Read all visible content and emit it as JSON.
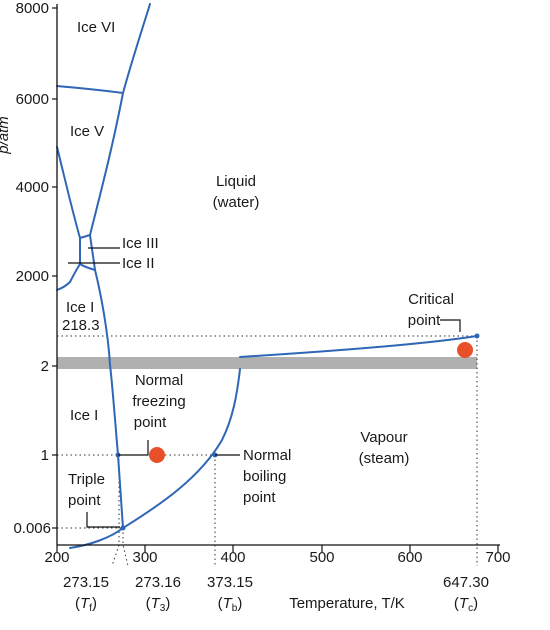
{
  "chart_data": {
    "type": "phase-diagram",
    "xlabel": "Temperature, T/K",
    "ylabel": "p/atm",
    "x_ticks": [
      "200",
      "300",
      "400",
      "500",
      "600",
      "700"
    ],
    "y_ticks_upper": [
      "2000",
      "4000",
      "6000",
      "8000"
    ],
    "y_ticks_lower": [
      "0.006",
      "1",
      "2"
    ],
    "y_break_label": "218.3",
    "x_special_ticks": [
      {
        "value": "273.15",
        "symbol": "(Tf)",
        "sym_main": "T",
        "sym_sub": "f"
      },
      {
        "value": "273.16",
        "symbol": "(T3)",
        "sym_main": "T",
        "sym_sub": "3"
      },
      {
        "value": "373.15",
        "symbol": "(Tb)",
        "sym_main": "T",
        "sym_sub": "b"
      },
      {
        "value": "647.30",
        "symbol": "(Tc)",
        "sym_main": "T",
        "sym_sub": "c"
      }
    ],
    "regions": [
      "Ice VI",
      "Ice V",
      "Liquid",
      "(water)",
      "Ice III",
      "Ice II",
      "Ice I",
      "Ice I",
      "Vapour",
      "(steam)"
    ],
    "annotations": [
      {
        "lines": [
          "Critical",
          "point"
        ]
      },
      {
        "lines": [
          "Normal",
          "freezing",
          "point"
        ]
      },
      {
        "lines": [
          "Normal",
          "boiling",
          "point"
        ]
      },
      {
        "lines": [
          "Triple",
          "point"
        ]
      }
    ],
    "special_points": [
      {
        "name": "triple point",
        "T": 273.16,
        "p": 0.006
      },
      {
        "name": "normal freezing point",
        "T": 273.15,
        "p": 1
      },
      {
        "name": "normal boiling point",
        "T": 373.15,
        "p": 1
      },
      {
        "name": "critical point",
        "T": 647.3,
        "p": 218.3
      }
    ],
    "markers": [
      {
        "T": 305,
        "p": 1
      },
      {
        "T": 663,
        "p": 218.3
      }
    ],
    "axis_break": true,
    "colors": {
      "boundary": "#2f66b5",
      "marker": "#e8502a",
      "break_band": "#b0b0b0",
      "axis": "#111111"
    }
  }
}
